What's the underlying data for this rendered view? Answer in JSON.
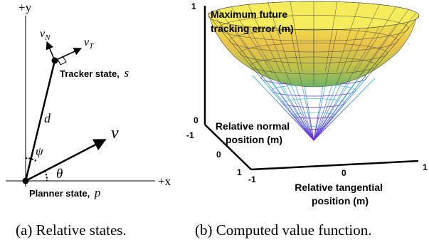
{
  "left_panel": {
    "axis_y": "+y",
    "axis_x": "+x",
    "v_n": "v",
    "v_n_sub": "N",
    "v_t": "v",
    "v_t_sub": "T",
    "tracker_label": "Tracker state,",
    "tracker_var": "s",
    "d": "d",
    "psi": "ψ",
    "theta": "θ",
    "v": "v",
    "planner_label": "Planner state,",
    "planner_var": "p",
    "caption": "(a) Relative states."
  },
  "right_panel": {
    "z_title": [
      "Maximum future",
      "tracking error (m)"
    ],
    "z_ticks": [
      "1",
      "0"
    ],
    "normal_label": [
      "Relative normal",
      "position (m)"
    ],
    "normal_ticks": [
      "-1",
      "0",
      "1"
    ],
    "tangential_label": [
      "Relative tangential",
      "position (m)"
    ],
    "tangential_ticks": [
      "-1",
      "0",
      "1"
    ],
    "caption": "(b) Computed value function."
  }
}
